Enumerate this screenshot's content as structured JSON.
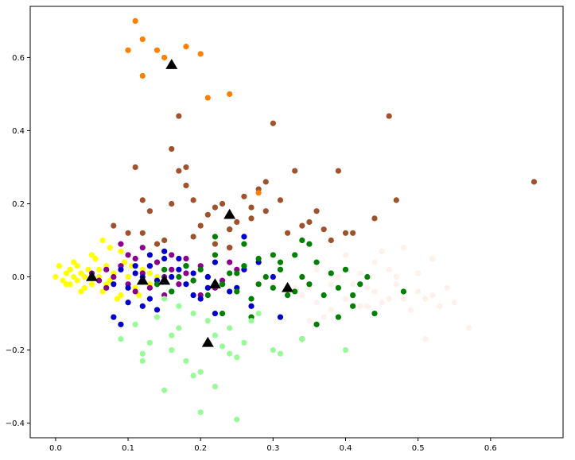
{
  "chart_data": {
    "type": "scatter",
    "title": "",
    "xlabel": "",
    "ylabel": "",
    "xlim": [
      -0.035,
      0.7
    ],
    "ylim": [
      -0.44,
      0.74
    ],
    "grid": false,
    "legend": "none",
    "x_ticks": [
      {
        "value": 0.0,
        "label": "0.0"
      },
      {
        "value": 0.1,
        "label": "0.1"
      },
      {
        "value": 0.2,
        "label": "0.2"
      },
      {
        "value": 0.3,
        "label": "0.3"
      },
      {
        "value": 0.4,
        "label": "0.4"
      },
      {
        "value": 0.5,
        "label": "0.5"
      },
      {
        "value": 0.6,
        "label": "0.6"
      }
    ],
    "y_ticks": [
      {
        "value": -0.4,
        "label": "−0.4"
      },
      {
        "value": -0.2,
        "label": "−0.2"
      },
      {
        "value": 0.0,
        "label": "0.0"
      },
      {
        "value": 0.2,
        "label": "0.2"
      },
      {
        "value": 0.4,
        "label": "0.4"
      },
      {
        "value": 0.6,
        "label": "0.6"
      }
    ],
    "series": [
      {
        "color": "#fff0eb",
        "marker": "circle",
        "points": [
          [
            0.3,
            -0.02
          ],
          [
            0.32,
            -0.04
          ],
          [
            0.34,
            -0.05
          ],
          [
            0.35,
            -0.03
          ],
          [
            0.36,
            -0.07
          ],
          [
            0.38,
            -0.02
          ],
          [
            0.38,
            -0.09
          ],
          [
            0.4,
            -0.06
          ],
          [
            0.42,
            0.01
          ],
          [
            0.42,
            -0.08
          ],
          [
            0.44,
            -0.04
          ],
          [
            0.45,
            0.07
          ],
          [
            0.46,
            -0.06
          ],
          [
            0.47,
            -0.02
          ],
          [
            0.48,
            0.08
          ],
          [
            0.49,
            -0.09
          ],
          [
            0.5,
            -0.04
          ],
          [
            0.51,
            -0.06
          ],
          [
            0.52,
            0.05
          ],
          [
            0.53,
            -0.08
          ],
          [
            0.54,
            -0.03
          ],
          [
            0.57,
            -0.14
          ],
          [
            0.51,
            -0.17
          ],
          [
            0.43,
            -0.08
          ],
          [
            0.45,
            -0.07
          ],
          [
            0.46,
            0.02
          ],
          [
            0.4,
            0.06
          ],
          [
            0.37,
            -0.11
          ],
          [
            0.33,
            -0.03
          ],
          [
            0.35,
            -0.12
          ],
          [
            0.41,
            -0.02
          ],
          [
            0.44,
            0.04
          ],
          [
            0.47,
            0.0
          ],
          [
            0.5,
            0.01
          ],
          [
            0.52,
            -0.05
          ],
          [
            0.39,
            0.0
          ],
          [
            0.36,
            0.02
          ],
          [
            0.43,
            -0.03
          ],
          [
            0.48,
            -0.06
          ],
          [
            0.55,
            -0.07
          ]
        ]
      },
      {
        "color": "#ffff00",
        "marker": "circle",
        "points": [
          [
            0.0,
            0.0
          ],
          [
            0.005,
            0.03
          ],
          [
            0.01,
            -0.01
          ],
          [
            0.015,
            0.01
          ],
          [
            0.02,
            0.02
          ],
          [
            0.02,
            -0.02
          ],
          [
            0.025,
            0.0
          ],
          [
            0.03,
            0.03
          ],
          [
            0.03,
            -0.01
          ],
          [
            0.035,
            0.01
          ],
          [
            0.04,
            0.0
          ],
          [
            0.04,
            -0.03
          ],
          [
            0.045,
            0.02
          ],
          [
            0.05,
            -0.02
          ],
          [
            0.055,
            0.05
          ],
          [
            0.06,
            0.0
          ],
          [
            0.065,
            -0.04
          ],
          [
            0.07,
            0.03
          ],
          [
            0.075,
            -0.01
          ],
          [
            0.08,
            0.01
          ],
          [
            0.09,
            -0.05
          ],
          [
            0.1,
            0.0
          ],
          [
            0.065,
            0.1
          ],
          [
            0.09,
            0.07
          ],
          [
            0.11,
            -0.03
          ],
          [
            0.12,
            0.02
          ],
          [
            0.13,
            -0.02
          ],
          [
            0.14,
            0.0
          ],
          [
            0.015,
            -0.02
          ],
          [
            0.025,
            0.04
          ],
          [
            0.035,
            -0.04
          ],
          [
            0.05,
            0.06
          ],
          [
            0.06,
            0.02
          ],
          [
            0.07,
            -0.02
          ],
          [
            0.075,
            0.08
          ],
          [
            0.085,
            -0.06
          ],
          [
            0.095,
            0.04
          ],
          [
            0.105,
            0.03
          ],
          [
            0.115,
            -0.05
          ],
          [
            0.13,
            0.01
          ]
        ]
      },
      {
        "color": "#8b008b",
        "marker": "circle",
        "points": [
          [
            0.05,
            0.01
          ],
          [
            0.06,
            -0.01
          ],
          [
            0.07,
            0.02
          ],
          [
            0.08,
            0.0
          ],
          [
            0.09,
            0.03
          ],
          [
            0.1,
            -0.02
          ],
          [
            0.11,
            0.05
          ],
          [
            0.12,
            0.01
          ],
          [
            0.13,
            -0.03
          ],
          [
            0.14,
            0.04
          ],
          [
            0.15,
            0.0
          ],
          [
            0.16,
            0.02
          ],
          [
            0.17,
            -0.02
          ],
          [
            0.18,
            0.01
          ],
          [
            0.19,
            -0.01
          ],
          [
            0.2,
            0.03
          ],
          [
            0.21,
            0.0
          ],
          [
            0.22,
            -0.03
          ],
          [
            0.09,
            0.09
          ],
          [
            0.12,
            0.08
          ],
          [
            0.24,
            0.04
          ],
          [
            0.18,
            0.05
          ],
          [
            0.15,
            -0.05
          ],
          [
            0.11,
            -0.04
          ],
          [
            0.23,
            -0.01
          ],
          [
            0.16,
            0.06
          ],
          [
            0.14,
            -0.02
          ],
          [
            0.07,
            -0.03
          ],
          [
            0.2,
            -0.05
          ],
          [
            0.25,
            0.02
          ],
          [
            0.13,
            0.03
          ],
          [
            0.1,
            0.06
          ]
        ]
      },
      {
        "color": "#0000cd",
        "marker": "circle",
        "points": [
          [
            0.08,
            -0.02
          ],
          [
            0.09,
            0.02
          ],
          [
            0.1,
            -0.03
          ],
          [
            0.11,
            0.03
          ],
          [
            0.12,
            0.0
          ],
          [
            0.13,
            0.06
          ],
          [
            0.14,
            -0.01
          ],
          [
            0.15,
            0.05
          ],
          [
            0.16,
            -0.04
          ],
          [
            0.17,
            0.02
          ],
          [
            0.18,
            -0.02
          ],
          [
            0.19,
            0.01
          ],
          [
            0.2,
            -0.06
          ],
          [
            0.21,
            0.0
          ],
          [
            0.22,
            0.04
          ],
          [
            0.23,
            -0.02
          ],
          [
            0.24,
            0.08
          ],
          [
            0.25,
            -0.03
          ],
          [
            0.26,
            0.02
          ],
          [
            0.27,
            -0.08
          ],
          [
            0.28,
            0.04
          ],
          [
            0.3,
            0.0
          ],
          [
            0.31,
            -0.11
          ],
          [
            0.08,
            -0.11
          ],
          [
            0.09,
            -0.13
          ],
          [
            0.1,
            -0.07
          ],
          [
            0.12,
            -0.08
          ],
          [
            0.14,
            -0.09
          ],
          [
            0.15,
            0.07
          ],
          [
            0.13,
            0.03
          ],
          [
            0.17,
            0.05
          ],
          [
            0.26,
            0.11
          ],
          [
            0.22,
            -0.1
          ],
          [
            0.19,
            -0.05
          ],
          [
            0.16,
            0.0
          ],
          [
            0.11,
            0.01
          ],
          [
            0.24,
            -0.04
          ],
          [
            0.18,
            0.03
          ],
          [
            0.21,
            -0.03
          ],
          [
            0.13,
            -0.06
          ]
        ]
      },
      {
        "color": "#008000",
        "marker": "circle",
        "points": [
          [
            0.14,
            -0.02
          ],
          [
            0.15,
            0.02
          ],
          [
            0.16,
            -0.04
          ],
          [
            0.17,
            0.0
          ],
          [
            0.18,
            0.03
          ],
          [
            0.19,
            -0.01
          ],
          [
            0.2,
            0.02
          ],
          [
            0.21,
            -0.05
          ],
          [
            0.22,
            0.06
          ],
          [
            0.23,
            -0.02
          ],
          [
            0.24,
            0.01
          ],
          [
            0.25,
            -0.04
          ],
          [
            0.26,
            0.03
          ],
          [
            0.27,
            -0.06
          ],
          [
            0.28,
            0.05
          ],
          [
            0.29,
            0.0
          ],
          [
            0.3,
            -0.03
          ],
          [
            0.31,
            0.02
          ],
          [
            0.32,
            -0.05
          ],
          [
            0.33,
            0.06
          ],
          [
            0.34,
            0.0
          ],
          [
            0.35,
            -0.02
          ],
          [
            0.36,
            0.04
          ],
          [
            0.37,
            -0.05
          ],
          [
            0.38,
            0.01
          ],
          [
            0.39,
            -0.03
          ],
          [
            0.4,
            0.02
          ],
          [
            0.41,
            -0.05
          ],
          [
            0.42,
            -0.02
          ],
          [
            0.43,
            0.0
          ],
          [
            0.44,
            -0.1
          ],
          [
            0.48,
            -0.04
          ],
          [
            0.39,
            -0.11
          ],
          [
            0.41,
            -0.08
          ],
          [
            0.36,
            -0.13
          ],
          [
            0.34,
            -0.17
          ],
          [
            0.34,
            0.1
          ],
          [
            0.35,
            0.09
          ],
          [
            0.3,
            0.06
          ],
          [
            0.26,
            0.09
          ],
          [
            0.24,
            0.13
          ],
          [
            0.22,
            0.11
          ],
          [
            0.27,
            -0.11
          ],
          [
            0.23,
            -0.1
          ],
          [
            0.33,
            -0.04
          ],
          [
            0.28,
            -0.02
          ],
          [
            0.25,
            0.01
          ],
          [
            0.31,
            0.04
          ]
        ]
      },
      {
        "color": "#98fb98",
        "marker": "circle",
        "points": [
          [
            0.09,
            -0.17
          ],
          [
            0.11,
            -0.13
          ],
          [
            0.12,
            -0.21
          ],
          [
            0.13,
            -0.18
          ],
          [
            0.14,
            -0.11
          ],
          [
            0.15,
            -0.06
          ],
          [
            0.16,
            -0.2
          ],
          [
            0.17,
            -0.14
          ],
          [
            0.18,
            -0.23
          ],
          [
            0.19,
            -0.27
          ],
          [
            0.2,
            -0.26
          ],
          [
            0.21,
            -0.12
          ],
          [
            0.22,
            -0.3
          ],
          [
            0.23,
            -0.19
          ],
          [
            0.24,
            -0.14
          ],
          [
            0.25,
            -0.22
          ],
          [
            0.26,
            -0.18
          ],
          [
            0.27,
            -0.12
          ],
          [
            0.28,
            -0.1
          ],
          [
            0.3,
            -0.2
          ],
          [
            0.34,
            -0.17
          ],
          [
            0.4,
            -0.2
          ],
          [
            0.25,
            -0.39
          ],
          [
            0.2,
            -0.37
          ],
          [
            0.15,
            -0.31
          ],
          [
            0.12,
            -0.23
          ],
          [
            0.17,
            -0.08
          ],
          [
            0.19,
            -0.1
          ],
          [
            0.22,
            -0.16
          ],
          [
            0.24,
            -0.21
          ],
          [
            0.31,
            -0.21
          ],
          [
            0.16,
            -0.16
          ]
        ]
      },
      {
        "color": "#a0522d",
        "marker": "circle",
        "points": [
          [
            0.11,
            0.3
          ],
          [
            0.12,
            0.21
          ],
          [
            0.13,
            0.18
          ],
          [
            0.14,
            0.09
          ],
          [
            0.15,
            0.1
          ],
          [
            0.16,
            0.35
          ],
          [
            0.17,
            0.29
          ],
          [
            0.18,
            0.3
          ],
          [
            0.19,
            0.21
          ],
          [
            0.2,
            0.14
          ],
          [
            0.21,
            0.17
          ],
          [
            0.22,
            0.19
          ],
          [
            0.23,
            0.2
          ],
          [
            0.24,
            0.13
          ],
          [
            0.25,
            0.15
          ],
          [
            0.26,
            0.22
          ],
          [
            0.27,
            0.19
          ],
          [
            0.28,
            0.24
          ],
          [
            0.29,
            0.26
          ],
          [
            0.3,
            0.42
          ],
          [
            0.31,
            0.21
          ],
          [
            0.33,
            0.29
          ],
          [
            0.35,
            0.15
          ],
          [
            0.36,
            0.18
          ],
          [
            0.37,
            0.13
          ],
          [
            0.39,
            0.29
          ],
          [
            0.4,
            0.12
          ],
          [
            0.44,
            0.16
          ],
          [
            0.47,
            0.21
          ],
          [
            0.46,
            0.44
          ],
          [
            0.66,
            0.26
          ],
          [
            0.17,
            0.44
          ],
          [
            0.08,
            0.14
          ],
          [
            0.1,
            0.12
          ],
          [
            0.12,
            0.12
          ],
          [
            0.16,
            0.2
          ],
          [
            0.19,
            0.11
          ],
          [
            0.22,
            0.09
          ],
          [
            0.27,
            0.16
          ],
          [
            0.32,
            0.12
          ],
          [
            0.41,
            0.12
          ],
          [
            0.18,
            0.25
          ],
          [
            0.24,
            0.08
          ],
          [
            0.29,
            0.18
          ],
          [
            0.34,
            0.14
          ],
          [
            0.38,
            0.1
          ]
        ]
      },
      {
        "color": "#ff7f00",
        "marker": "circle",
        "points": [
          [
            0.1,
            0.62
          ],
          [
            0.11,
            0.7
          ],
          [
            0.12,
            0.65
          ],
          [
            0.12,
            0.55
          ],
          [
            0.14,
            0.62
          ],
          [
            0.15,
            0.6
          ],
          [
            0.18,
            0.63
          ],
          [
            0.2,
            0.61
          ],
          [
            0.21,
            0.49
          ],
          [
            0.24,
            0.5
          ],
          [
            0.28,
            0.23
          ]
        ]
      },
      {
        "color": "#000000",
        "marker": "triangle",
        "points": [
          [
            0.05,
            0.0
          ],
          [
            0.12,
            -0.01
          ],
          [
            0.16,
            0.58
          ],
          [
            0.15,
            -0.01
          ],
          [
            0.22,
            -0.02
          ],
          [
            0.24,
            0.17
          ],
          [
            0.21,
            -0.18
          ],
          [
            0.32,
            -0.03
          ]
        ]
      }
    ]
  }
}
